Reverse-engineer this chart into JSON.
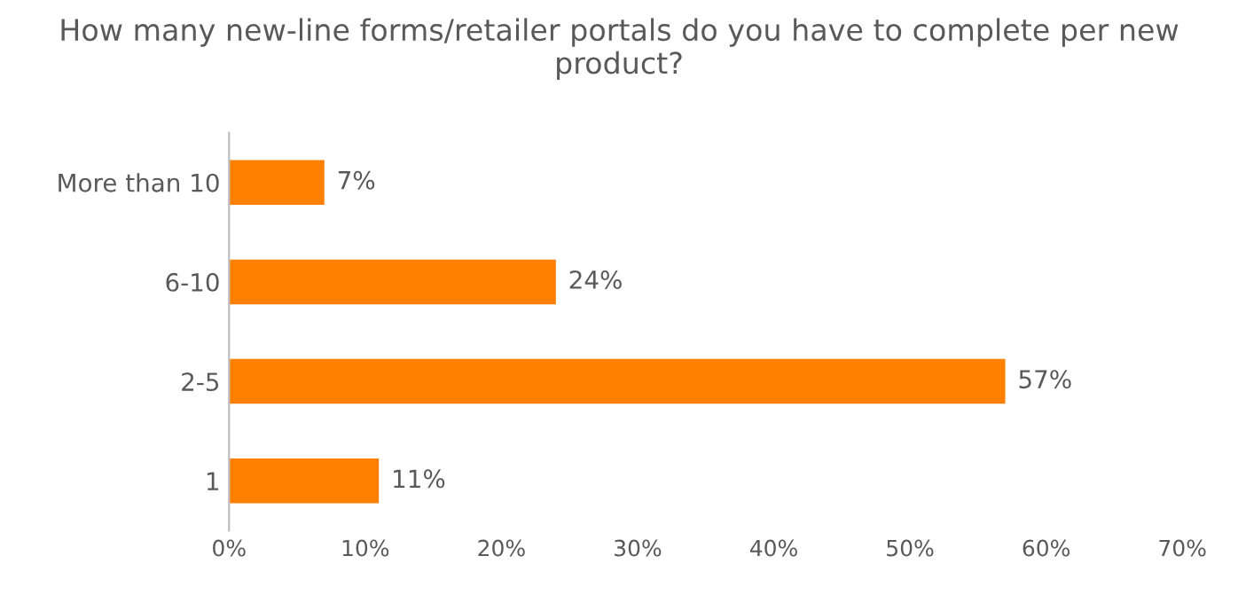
{
  "chart_data": {
    "type": "bar",
    "orientation": "horizontal",
    "title": "How many new-line forms/retailer portals do you have to complete per new product?",
    "categories": [
      "More than 10",
      "6-10",
      "2-5",
      "1"
    ],
    "values": [
      7,
      24,
      57,
      11
    ],
    "value_labels": [
      "7%",
      "24%",
      "57%",
      "11%"
    ],
    "color": "#ff8000",
    "xlim": [
      0,
      70
    ],
    "xticks": [
      {
        "value": 0,
        "label": "0%"
      },
      {
        "value": 10,
        "label": "10%"
      },
      {
        "value": 20,
        "label": "20%"
      },
      {
        "value": 30,
        "label": "30%"
      },
      {
        "value": 40,
        "label": "40%"
      },
      {
        "value": 50,
        "label": "50%"
      },
      {
        "value": 60,
        "label": "60%"
      },
      {
        "value": 70,
        "label": "70%"
      }
    ],
    "grid": false
  }
}
